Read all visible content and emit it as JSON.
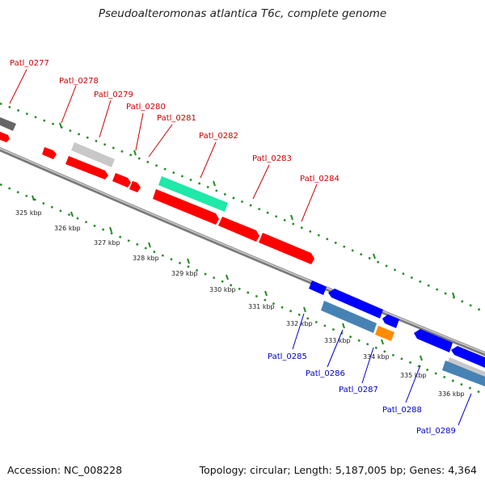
{
  "title": "Pseudoalteromonas atlantica T6c, complete genome",
  "accession": "Accession: NC_008228",
  "topology": "Topology: circular; Length: 5,187,005 bp; Genes: 4,364",
  "colors": {
    "red": "#ff0000",
    "blue": "#0000ff",
    "steel": "#4682b4",
    "orange": "#ff8c00",
    "teal": "#1fe8a8",
    "lightgray": "#c8c8c8",
    "darkgray": "#666666",
    "backbone": "#888888",
    "ticks": "#228b22",
    "label_red": "#cc0000",
    "label_blue": "#0000cc"
  },
  "tick_labels": [
    "325 kbp",
    "326 kbp",
    "327 kbp",
    "328 kbp",
    "329 kbp",
    "330 kbp",
    "331 kbp",
    "332 kbp",
    "333 kbp",
    "334 kbp",
    "335 kbp",
    "336 kbp"
  ],
  "gene_labels_top": [
    "Patl_0277",
    "Patl_0278",
    "Patl_0279",
    "Patl_0280",
    "Patl_0281",
    "Patl_0282",
    "Patl_0283",
    "Patl_0284"
  ],
  "gene_labels_bottom": [
    "Patl_0285",
    "Patl_0286",
    "Patl_0287",
    "Patl_0288",
    "Patl_0289"
  ]
}
